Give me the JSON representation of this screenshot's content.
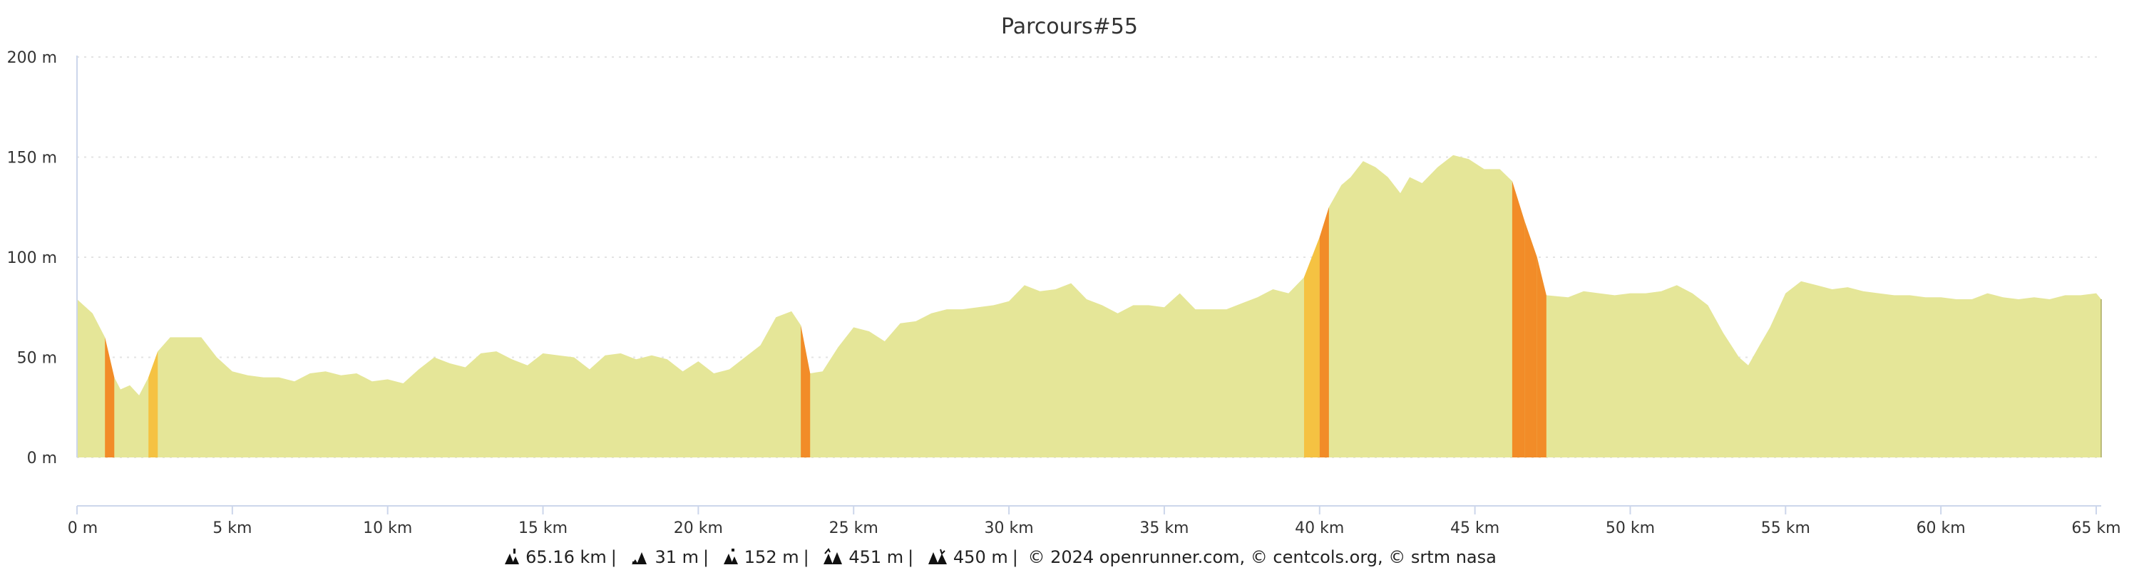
{
  "chart_data": {
    "type": "area",
    "title": "Parcours#55",
    "xlabel": "",
    "ylabel": "",
    "xlim": [
      0,
      65.16
    ],
    "ylim": [
      0,
      200
    ],
    "grid": true,
    "x_ticks": [
      "0 m",
      "5 km",
      "10 km",
      "15 km",
      "20 km",
      "25 km",
      "30 km",
      "35 km",
      "40 km",
      "45 km",
      "50 km",
      "55 km",
      "60 km",
      "65 km"
    ],
    "y_ticks": [
      "0 m",
      "50 m",
      "100 m",
      "150 m",
      "200 m"
    ],
    "x_unit": "km",
    "y_unit": "m",
    "colors": {
      "fill": "#e5e698",
      "steep": "#f28c28",
      "moderate": "#f5c242",
      "grid": "#e3e3e3",
      "axis": "#ccd6eb"
    },
    "series": [
      {
        "x": [
          0,
          0.5,
          0.9,
          1.2,
          1.4,
          1.7,
          2.0,
          2.3,
          2.6,
          3,
          3.5,
          4,
          4.5,
          5,
          5.5,
          6,
          6.5,
          7,
          7.5,
          8,
          8.5,
          9,
          9.5,
          10,
          10.5,
          11,
          11.5,
          12,
          12.5,
          13,
          13.5,
          14,
          14.5,
          15,
          15.5,
          16,
          16.5,
          17,
          17.5,
          18,
          18.5,
          19,
          19.5,
          20,
          20.5,
          21,
          21.5,
          22,
          22.5,
          23,
          23.3,
          23.6,
          24,
          24.5,
          25,
          25.5,
          26,
          26.5,
          27,
          27.5,
          28,
          28.5,
          29,
          29.5,
          30,
          30.5,
          31,
          31.5,
          32,
          32.5,
          33,
          33.5,
          34,
          34.5,
          35,
          35.5,
          36,
          36.5,
          37,
          37.5,
          38,
          38.5,
          39,
          39.5,
          40,
          40.3,
          40.7,
          41,
          41.4,
          41.8,
          42.2,
          42.6,
          42.9,
          43.3,
          43.8,
          44.3,
          44.8,
          45.3,
          45.8,
          46.2,
          46.6,
          47,
          47.3,
          48,
          48.5,
          49,
          49.5,
          50,
          50.5,
          51,
          51.5,
          52,
          52.5,
          53,
          53.5,
          53.8,
          54.2,
          54.5,
          55,
          55.5,
          56,
          56.5,
          57,
          57.5,
          58,
          58.5,
          59,
          59.5,
          60,
          60.5,
          61,
          61.5,
          62,
          62.5,
          63,
          63.5,
          64,
          64.5,
          65,
          65.16
        ],
        "y": [
          79,
          72,
          60,
          40,
          34,
          36,
          31,
          40,
          53,
          60,
          60,
          60,
          50,
          43,
          41,
          40,
          40,
          38,
          42,
          43,
          41,
          42,
          38,
          39,
          37,
          44,
          50,
          47,
          45,
          52,
          53,
          49,
          46,
          52,
          51,
          50,
          44,
          51,
          52,
          49,
          51,
          49,
          43,
          48,
          42,
          44,
          50,
          56,
          70,
          73,
          66,
          42,
          43,
          55,
          65,
          63,
          58,
          67,
          68,
          72,
          74,
          74,
          75,
          76,
          78,
          86,
          83,
          84,
          87,
          79,
          76,
          72,
          76,
          76,
          75,
          82,
          74,
          74,
          74,
          77,
          80,
          84,
          82,
          90,
          110,
          125,
          136,
          140,
          148,
          145,
          140,
          132,
          140,
          137,
          145,
          151,
          149,
          144,
          144,
          138,
          118,
          100,
          81,
          80,
          83,
          82,
          81,
          82,
          82,
          83,
          86,
          82,
          76,
          62,
          50,
          46,
          57,
          65,
          82,
          88,
          86,
          84,
          85,
          83,
          82,
          81,
          81,
          80,
          80,
          79,
          79,
          82,
          80,
          79,
          80,
          79,
          81,
          81,
          82,
          79
        ]
      }
    ]
  },
  "footer": {
    "distance": "65.16 km",
    "min_altitude": "31 m",
    "max_altitude": "152 m",
    "ascent": "451 m",
    "descent": "450 m",
    "separator": "|",
    "copyright": "© 2024 openrunner.com, © centcols.org, © srtm nasa",
    "icons": [
      "distance-peak-icon",
      "min-altitude-icon",
      "max-altitude-icon",
      "ascent-icon",
      "descent-icon"
    ]
  }
}
